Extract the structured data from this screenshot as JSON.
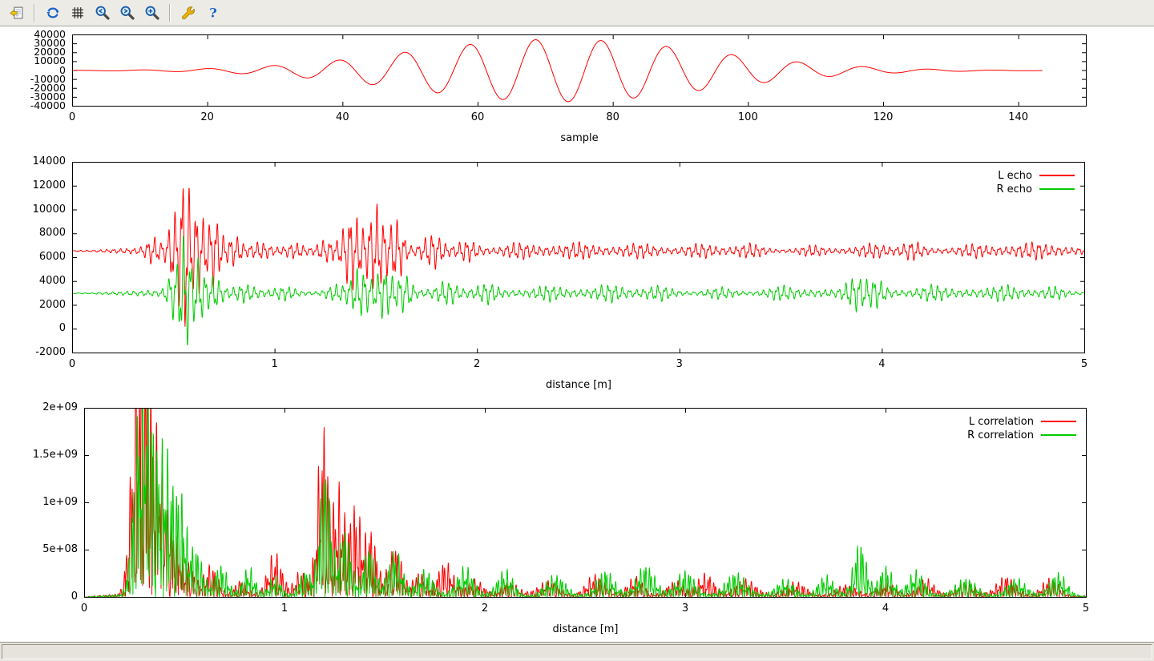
{
  "window": {
    "background": "#ffffff",
    "chrome_background": "#ecebe6"
  },
  "toolbar": {
    "items": [
      {
        "type": "button",
        "name": "copy-to-clipboard",
        "icon": "clipboard-copy",
        "tooltip": "Copy the plot to clipboard"
      },
      {
        "type": "separator"
      },
      {
        "type": "button",
        "name": "replot",
        "icon": "refresh",
        "tooltip": "Replot"
      },
      {
        "type": "button",
        "name": "toggle-grid",
        "icon": "grid",
        "tooltip": "Toggle grid"
      },
      {
        "type": "button",
        "name": "zoom-previous",
        "icon": "magnifier-previous",
        "tooltip": "Apply the previous zoom settings"
      },
      {
        "type": "button",
        "name": "zoom-next",
        "icon": "magnifier-next",
        "tooltip": "Apply the next zoom settings"
      },
      {
        "type": "button",
        "name": "autoscale",
        "icon": "magnifier-autoscale",
        "tooltip": "Autoscale"
      },
      {
        "type": "separator"
      },
      {
        "type": "button",
        "name": "configure",
        "icon": "wrench",
        "tooltip": "Configure"
      },
      {
        "type": "button",
        "name": "help",
        "icon": "question",
        "tooltip": "Help"
      }
    ]
  },
  "status_bar": {
    "text": ""
  },
  "colors": {
    "line_red": "#ff0000",
    "line_green": "#00cc00",
    "axis": "#000000"
  },
  "chart_data": [
    {
      "id": "pulse",
      "type": "line",
      "title": "",
      "xlabel": "sample",
      "ylabel": "",
      "xlim": [
        0,
        150
      ],
      "ylim": [
        -40000,
        40000
      ],
      "xticks": {
        "values": [
          0,
          20,
          40,
          60,
          80,
          100,
          120,
          140
        ],
        "labels": [
          "0",
          "20",
          "40",
          "60",
          "80",
          "100",
          "120",
          "140"
        ]
      },
      "yticks": {
        "values": [
          40000,
          30000,
          20000,
          10000,
          0,
          -10000,
          -20000,
          -30000,
          -40000
        ],
        "labels": [
          "40000",
          "30000",
          "20000",
          "10000",
          "0",
          "-10000",
          "-20000",
          "-30000",
          "-40000"
        ]
      },
      "grid": false,
      "legend": null,
      "series": [
        {
          "name": "pulse",
          "color": "#ff0000",
          "x_start": 0,
          "x_end": 143.5,
          "points": 1600,
          "model": {
            "kind": "gabor",
            "baseline": 0,
            "amplitude": 35000,
            "center": 72,
            "sigma": 22,
            "period": 9.7,
            "phase_peak": 68.5
          }
        }
      ]
    },
    {
      "id": "echo",
      "type": "line",
      "title": "",
      "xlabel": "distance [m]",
      "ylabel": "",
      "xlim": [
        0,
        5
      ],
      "ylim": [
        -2000,
        14000
      ],
      "xticks": {
        "values": [
          0,
          1,
          2,
          3,
          4,
          5
        ],
        "labels": [
          "0",
          "1",
          "2",
          "3",
          "4",
          "5"
        ]
      },
      "yticks": {
        "values": [
          14000,
          12000,
          10000,
          8000,
          6000,
          4000,
          2000,
          0,
          -2000
        ],
        "labels": [
          "14000",
          "12000",
          "10000",
          "8000",
          "6000",
          "4000",
          "2000",
          "0",
          "-2000"
        ]
      },
      "grid": false,
      "legend": {
        "position": "top-right",
        "entries": [
          {
            "label": "L echo",
            "color": "#ff0000"
          },
          {
            "label": "R echo",
            "color": "#00cc00"
          }
        ]
      },
      "series": [
        {
          "name": "L echo",
          "color": "#ff0000",
          "points": 3400,
          "model": {
            "kind": "burst",
            "baseline": 6550,
            "carrier_freq": 30,
            "carrier_phase": 0,
            "background": {
              "base": 230,
              "f1": 0.41,
              "p1": 1.7,
              "f2": 1.31,
              "p2": 0.4
            },
            "bursts": [
              [
                0.4,
                0.03,
                900
              ],
              [
                0.5,
                0.025,
                2500
              ],
              [
                0.555,
                0.022,
                6300
              ],
              [
                0.62,
                0.025,
                3200
              ],
              [
                0.7,
                0.03,
                2600
              ],
              [
                0.8,
                0.03,
                1000
              ],
              [
                0.93,
                0.04,
                500
              ],
              [
                1.1,
                0.04,
                500
              ],
              [
                1.25,
                0.035,
                800
              ],
              [
                1.38,
                0.04,
                3000
              ],
              [
                1.5,
                0.035,
                3400
              ],
              [
                1.6,
                0.03,
                2300
              ],
              [
                1.78,
                0.04,
                1200
              ],
              [
                1.95,
                0.04,
                700
              ],
              [
                2.2,
                0.05,
                450
              ],
              [
                2.5,
                0.05,
                400
              ],
              [
                2.8,
                0.06,
                450
              ],
              [
                3.1,
                0.05,
                380
              ],
              [
                3.35,
                0.05,
                450
              ],
              [
                3.65,
                0.05,
                380
              ],
              [
                3.95,
                0.05,
                400
              ],
              [
                4.15,
                0.04,
                600
              ],
              [
                4.45,
                0.05,
                380
              ],
              [
                4.75,
                0.05,
                400
              ]
            ]
          }
        },
        {
          "name": "R echo",
          "color": "#00cc00",
          "points": 3400,
          "model": {
            "kind": "burst",
            "baseline": 3000,
            "carrier_freq": 29,
            "carrier_phase": 2.1,
            "background": {
              "base": 220,
              "f1": 0.53,
              "p1": 0.3,
              "f2": 1.07,
              "p2": 2.1
            },
            "bursts": [
              [
                0.5,
                0.025,
                1700
              ],
              [
                0.555,
                0.022,
                4300
              ],
              [
                0.62,
                0.025,
                2400
              ],
              [
                0.7,
                0.03,
                1100
              ],
              [
                0.85,
                0.04,
                500
              ],
              [
                1.05,
                0.04,
                420
              ],
              [
                1.3,
                0.04,
                600
              ],
              [
                1.42,
                0.04,
                1900
              ],
              [
                1.54,
                0.035,
                1900
              ],
              [
                1.64,
                0.03,
                1300
              ],
              [
                1.85,
                0.04,
                750
              ],
              [
                2.05,
                0.04,
                650
              ],
              [
                2.35,
                0.05,
                450
              ],
              [
                2.65,
                0.05,
                480
              ],
              [
                2.9,
                0.05,
                450
              ],
              [
                3.2,
                0.05,
                430
              ],
              [
                3.5,
                0.05,
                450
              ],
              [
                3.87,
                0.04,
                1150
              ],
              [
                3.97,
                0.035,
                950
              ],
              [
                4.25,
                0.05,
                480
              ],
              [
                4.6,
                0.05,
                430
              ],
              [
                4.85,
                0.04,
                420
              ]
            ]
          }
        }
      ]
    },
    {
      "id": "correlation",
      "type": "line",
      "title": "",
      "xlabel": "distance [m]",
      "ylabel": "",
      "xlim": [
        0,
        5
      ],
      "ylim": [
        0,
        2000000000.0
      ],
      "xticks": {
        "values": [
          0,
          1,
          2,
          3,
          4,
          5
        ],
        "labels": [
          "0",
          "1",
          "2",
          "3",
          "4",
          "5"
        ]
      },
      "yticks": {
        "values": [
          2000000000.0,
          1500000000.0,
          1000000000.0,
          500000000.0,
          0
        ],
        "labels": [
          "2e+09",
          "1.5e+09",
          "1e+09",
          "5e+08",
          "0"
        ]
      },
      "grid": false,
      "legend": {
        "position": "top-right",
        "entries": [
          {
            "label": "L correlation",
            "color": "#ff0000"
          },
          {
            "label": "R correlation",
            "color": "#00cc00"
          }
        ]
      },
      "series": [
        {
          "name": "L correlation",
          "color": "#ff0000",
          "points": 3600,
          "model": {
            "kind": "rectified",
            "carrier_freq": 34,
            "carrier_phase": 0.3,
            "background": {
              "base": 25000000.0,
              "f1": 0.9,
              "p1": 2.0,
              "f2": 2.3,
              "p2": 0.7
            },
            "bursts": [
              [
                0.26,
                0.03,
                1900000000.0
              ],
              [
                0.31,
                0.035,
                2050000000.0
              ],
              [
                0.38,
                0.03,
                1200000000.0
              ],
              [
                0.45,
                0.03,
                600000000.0
              ],
              [
                0.52,
                0.03,
                300000000.0
              ],
              [
                0.63,
                0.035,
                320000000.0
              ],
              [
                0.78,
                0.03,
                160000000.0
              ],
              [
                0.95,
                0.035,
                430000000.0
              ],
              [
                1.08,
                0.03,
                250000000.0
              ],
              [
                1.19,
                0.028,
                1750000000.0
              ],
              [
                1.27,
                0.028,
                1050000000.0
              ],
              [
                1.35,
                0.03,
                900000000.0
              ],
              [
                1.43,
                0.03,
                650000000.0
              ],
              [
                1.55,
                0.035,
                520000000.0
              ],
              [
                1.67,
                0.03,
                250000000.0
              ],
              [
                1.8,
                0.04,
                340000000.0
              ],
              [
                1.95,
                0.04,
                160000000.0
              ],
              [
                2.12,
                0.04,
                130000000.0
              ],
              [
                2.32,
                0.05,
                140000000.0
              ],
              [
                2.55,
                0.045,
                220000000.0
              ],
              [
                2.75,
                0.04,
                190000000.0
              ],
              [
                2.95,
                0.045,
                150000000.0
              ],
              [
                3.1,
                0.04,
                210000000.0
              ],
              [
                3.3,
                0.05,
                160000000.0
              ],
              [
                3.55,
                0.05,
                130000000.0
              ],
              [
                3.8,
                0.05,
                120000000.0
              ],
              [
                4.0,
                0.04,
                150000000.0
              ],
              [
                4.2,
                0.04,
                170000000.0
              ],
              [
                4.4,
                0.04,
                130000000.0
              ],
              [
                4.6,
                0.045,
                200000000.0
              ],
              [
                4.82,
                0.04,
                180000000.0
              ]
            ]
          }
        },
        {
          "name": "R correlation",
          "color": "#00cc00",
          "points": 3600,
          "model": {
            "kind": "rectified",
            "carrier_freq": 36,
            "carrier_phase": 1.9,
            "background": {
              "base": 22000000.0,
              "f1": 0.7,
              "p1": 0.5,
              "f2": 2.1,
              "p2": 1.4
            },
            "bursts": [
              [
                0.27,
                0.03,
                1550000000.0
              ],
              [
                0.32,
                0.03,
                1800000000.0
              ],
              [
                0.4,
                0.035,
                1500000000.0
              ],
              [
                0.48,
                0.03,
                950000000.0
              ],
              [
                0.56,
                0.03,
                450000000.0
              ],
              [
                0.68,
                0.035,
                320000000.0
              ],
              [
                0.82,
                0.03,
                300000000.0
              ],
              [
                0.95,
                0.03,
                200000000.0
              ],
              [
                1.1,
                0.03,
                260000000.0
              ],
              [
                1.2,
                0.028,
                1350000000.0
              ],
              [
                1.3,
                0.03,
                700000000.0
              ],
              [
                1.42,
                0.03,
                500000000.0
              ],
              [
                1.55,
                0.035,
                460000000.0
              ],
              [
                1.7,
                0.04,
                260000000.0
              ],
              [
                1.9,
                0.04,
                290000000.0
              ],
              [
                2.1,
                0.04,
                270000000.0
              ],
              [
                2.35,
                0.05,
                210000000.0
              ],
              [
                2.6,
                0.045,
                270000000.0
              ],
              [
                2.8,
                0.045,
                310000000.0
              ],
              [
                3.0,
                0.045,
                250000000.0
              ],
              [
                3.25,
                0.05,
                230000000.0
              ],
              [
                3.5,
                0.045,
                170000000.0
              ],
              [
                3.7,
                0.04,
                210000000.0
              ],
              [
                3.87,
                0.032,
                560000000.0
              ],
              [
                4.0,
                0.035,
                310000000.0
              ],
              [
                4.15,
                0.04,
                260000000.0
              ],
              [
                4.4,
                0.05,
                170000000.0
              ],
              [
                4.65,
                0.045,
                170000000.0
              ],
              [
                4.86,
                0.04,
                230000000.0
              ]
            ]
          }
        }
      ]
    }
  ]
}
